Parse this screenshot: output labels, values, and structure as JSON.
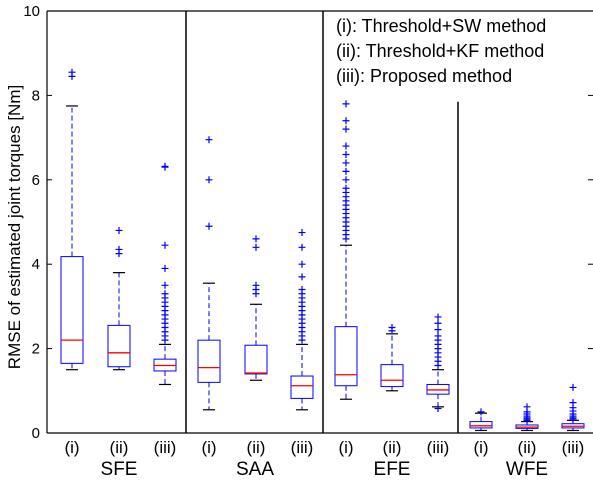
{
  "chart_data": {
    "type": "box",
    "ylabel": "RMSE of estimated joint torques [Nm]",
    "xlabel": "",
    "ylim": [
      0,
      10
    ],
    "yticks": [
      0,
      2,
      4,
      6,
      8,
      10
    ],
    "grid": false,
    "legend_position": "top-right",
    "legend": [
      "(i): Threshold+SW method",
      "(ii): Threshold+KF method",
      "(iii): Proposed method"
    ],
    "groups": [
      {
        "name": "SFE",
        "boxes": [
          {
            "label": "(i)",
            "q1": 1.65,
            "median": 2.2,
            "q3": 4.18,
            "whisker_low": 1.5,
            "whisker_high": 7.75,
            "outliers": [
              8.45,
              8.55
            ]
          },
          {
            "label": "(ii)",
            "q1": 1.57,
            "median": 1.9,
            "q3": 2.55,
            "whisker_low": 1.5,
            "whisker_high": 3.8,
            "outliers": [
              4.25,
              4.35,
              4.8
            ]
          },
          {
            "label": "(iii)",
            "q1": 1.47,
            "median": 1.6,
            "q3": 1.75,
            "whisker_low": 1.15,
            "whisker_high": 2.1,
            "outliers": [
              2.2,
              2.3,
              2.4,
              2.5,
              2.6,
              2.7,
              2.8,
              2.9,
              3.0,
              3.1,
              3.2,
              3.3,
              3.5,
              3.9,
              4.45,
              6.3,
              6.32
            ]
          }
        ]
      },
      {
        "name": "SAA",
        "boxes": [
          {
            "label": "(i)",
            "q1": 1.2,
            "median": 1.55,
            "q3": 2.2,
            "whisker_low": 0.55,
            "whisker_high": 3.55,
            "outliers": [
              4.9,
              6.0,
              6.95
            ]
          },
          {
            "label": "(ii)",
            "q1": 1.4,
            "median": 1.42,
            "q3": 2.08,
            "whisker_low": 1.25,
            "whisker_high": 3.05,
            "outliers": [
              3.3,
              3.4,
              3.5,
              4.4,
              4.6
            ]
          },
          {
            "label": "(iii)",
            "q1": 0.82,
            "median": 1.12,
            "q3": 1.35,
            "whisker_low": 0.55,
            "whisker_high": 2.1,
            "outliers": [
              2.2,
              2.3,
              2.4,
              2.5,
              2.6,
              2.7,
              2.8,
              2.9,
              3.0,
              3.1,
              3.2,
              3.3,
              3.4,
              3.7,
              4.0,
              4.4,
              4.75
            ]
          }
        ]
      },
      {
        "name": "EFE",
        "boxes": [
          {
            "label": "(i)",
            "q1": 1.12,
            "median": 1.38,
            "q3": 2.52,
            "whisker_low": 0.8,
            "whisker_high": 4.45,
            "outliers": [
              4.6,
              4.7,
              4.8,
              4.9,
              5.0,
              5.1,
              5.2,
              5.3,
              5.4,
              5.5,
              5.6,
              5.7,
              5.8,
              6.0,
              6.2,
              6.4,
              6.6,
              6.8,
              7.2,
              7.4,
              7.8
            ]
          },
          {
            "label": "(ii)",
            "q1": 1.1,
            "median": 1.25,
            "q3": 1.62,
            "whisker_low": 1.0,
            "whisker_high": 2.35,
            "outliers": [
              2.42,
              2.5
            ]
          },
          {
            "label": "(iii)",
            "q1": 0.92,
            "median": 1.02,
            "q3": 1.15,
            "whisker_low": 0.62,
            "whisker_high": 1.5,
            "outliers": [
              1.6,
              1.7,
              1.8,
              1.9,
              2.0,
              2.1,
              2.2,
              2.3,
              2.45,
              2.6,
              2.75,
              0.58
            ]
          }
        ]
      },
      {
        "name": "WFE",
        "boxes": [
          {
            "label": "(i)",
            "q1": 0.12,
            "median": 0.17,
            "q3": 0.27,
            "whisker_low": 0.06,
            "whisker_high": 0.47,
            "outliers": [
              0.5
            ]
          },
          {
            "label": "(ii)",
            "q1": 0.11,
            "median": 0.14,
            "q3": 0.19,
            "whisker_low": 0.06,
            "whisker_high": 0.27,
            "outliers": [
              0.3,
              0.33,
              0.36,
              0.4,
              0.45,
              0.5,
              0.62
            ]
          },
          {
            "label": "(iii)",
            "q1": 0.12,
            "median": 0.16,
            "q3": 0.22,
            "whisker_low": 0.06,
            "whisker_high": 0.3,
            "outliers": [
              0.33,
              0.36,
              0.4,
              0.45,
              0.52,
              0.6,
              0.72,
              1.08
            ]
          }
        ]
      }
    ],
    "colors": {
      "box": "#0000ff",
      "median": "#ff0000",
      "whisker": "#0000ff",
      "cap": "#000000",
      "outlier": "#0000ff",
      "axis": "#000000"
    }
  }
}
